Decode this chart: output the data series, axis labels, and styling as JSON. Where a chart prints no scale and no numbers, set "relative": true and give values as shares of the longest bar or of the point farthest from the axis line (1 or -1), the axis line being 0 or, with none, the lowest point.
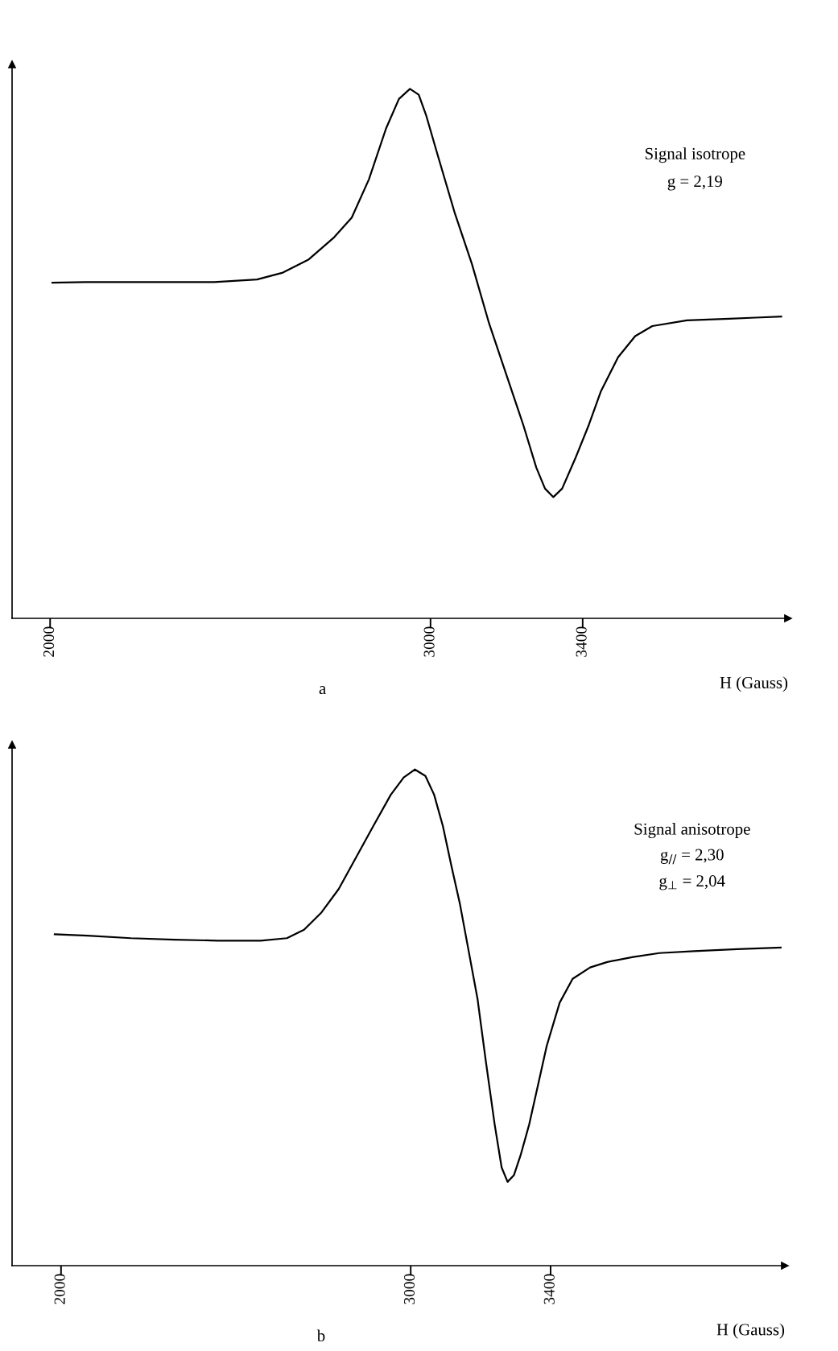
{
  "chart_data": [
    {
      "type": "line",
      "title": "a",
      "xlabel": "H (Gauss)",
      "relative": true,
      "tick_labels": "x",
      "xlim": [
        1900,
        3940
      ],
      "xticks": [
        2000,
        3000,
        3400
      ],
      "marker": "none",
      "line_style": "solid",
      "series": [
        {
          "color": "#000000",
          "x": [
            2006,
            2092,
            2205,
            2318,
            2431,
            2544,
            2612,
            2680,
            2747,
            2793,
            2838,
            2883,
            2917,
            2946,
            2969,
            2989,
            3018,
            3064,
            3109,
            3154,
            3199,
            3244,
            3278,
            3301,
            3323,
            3346,
            3380,
            3416,
            3448,
            3493,
            3538,
            3583,
            3674,
            3786,
            3854,
            3922
          ],
          "values": [
            0.634,
            0.635,
            0.635,
            0.635,
            0.635,
            0.64,
            0.653,
            0.678,
            0.72,
            0.757,
            0.829,
            0.925,
            0.981,
            1.0,
            0.989,
            0.949,
            0.877,
            0.765,
            0.669,
            0.557,
            0.461,
            0.365,
            0.285,
            0.245,
            0.229,
            0.245,
            0.301,
            0.365,
            0.429,
            0.493,
            0.533,
            0.552,
            0.563,
            0.566,
            0.568,
            0.57
          ]
        }
      ],
      "annotations": [
        "Signal isotrope",
        "g = 2,19"
      ]
    },
    {
      "type": "line",
      "title": "b",
      "xlabel": "H (Gauss)",
      "relative": true,
      "tick_labels": "x",
      "xlim": [
        1860,
        4070
      ],
      "xticks": [
        2000,
        3000,
        3400
      ],
      "marker": "none",
      "line_style": "solid",
      "series": [
        {
          "color": "#000000",
          "x": [
            1982,
            2076,
            2200,
            2324,
            2448,
            2571,
            2646,
            2695,
            2745,
            2794,
            2844,
            2893,
            2943,
            2980,
            3012,
            3042,
            3067,
            3092,
            3116,
            3141,
            3166,
            3191,
            3215,
            3240,
            3260,
            3277,
            3295,
            3314,
            3339,
            3364,
            3389,
            3426,
            3463,
            3513,
            3562,
            3636,
            3711,
            3810,
            3934,
            4058
          ],
          "values": [
            0.668,
            0.665,
            0.66,
            0.657,
            0.655,
            0.655,
            0.66,
            0.677,
            0.712,
            0.759,
            0.823,
            0.886,
            0.949,
            0.984,
            1.0,
            0.987,
            0.949,
            0.886,
            0.807,
            0.728,
            0.633,
            0.538,
            0.411,
            0.285,
            0.198,
            0.169,
            0.182,
            0.222,
            0.285,
            0.364,
            0.443,
            0.53,
            0.578,
            0.601,
            0.612,
            0.622,
            0.63,
            0.634,
            0.638,
            0.641
          ]
        }
      ],
      "annotations": [
        "Signal anisotrope",
        "g$_{//}$ = 2,30",
        "g$_{⊥}$ = 2,04"
      ]
    }
  ]
}
